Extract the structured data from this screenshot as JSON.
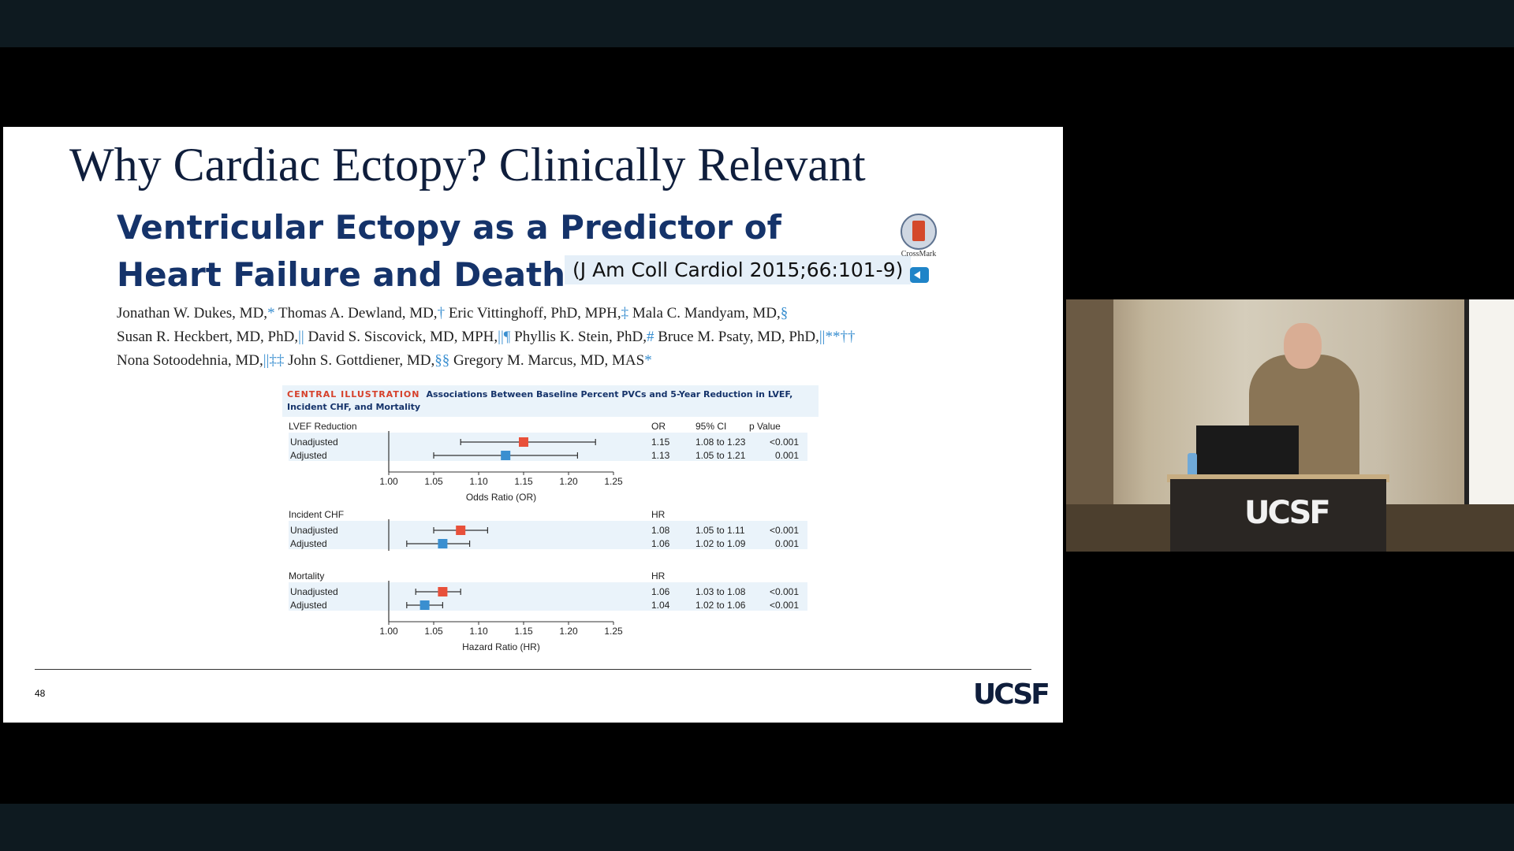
{
  "slide": {
    "title": "Why Cardiac Ectopy? Clinically Relevant",
    "paper_title_line1": "Ventricular Ectopy as a Predictor of",
    "paper_title_line2": "Heart Failure and Death",
    "citation": "(J Am Coll Cardiol 2015;66:101-9)",
    "crossmark_label": "CrossMark",
    "authors": [
      [
        "Jonathan W. Dukes, MD,",
        "*",
        " Thomas A. Dewland, MD,",
        "†",
        " Eric Vittinghoff, PhD, MPH,",
        "‡",
        " Mala C. Mandyam, MD,",
        "§"
      ],
      [
        "Susan R. Heckbert, MD, PhD,",
        "||",
        " David S. Siscovick, MD, MPH,",
        "||¶",
        " Phyllis K. Stein, PhD,",
        "#",
        " Bruce M. Psaty, MD, PhD,",
        "||**††"
      ],
      [
        "Nona Sotoodehnia, MD,",
        "||‡‡",
        " John S. Gottdiener, MD,",
        "§§",
        " Gregory M. Marcus, MD, MAS",
        "*"
      ]
    ],
    "page_number": "48",
    "logo": "UCSF",
    "central_illustration": {
      "label": "CENTRAL ILLUSTRATION",
      "caption": "Associations Between Baseline Percent PVCs and 5-Year Reduction in LVEF, Incident CHF, and Mortality"
    }
  },
  "chart_data": {
    "type": "forest",
    "panels": [
      {
        "name": "LVEF Reduction",
        "stat": "OR",
        "ci_header": "95% CI",
        "p_header": "p Value",
        "rows": [
          {
            "label": "Unadjusted",
            "est": 1.15,
            "lo": 1.08,
            "hi": 1.23,
            "est_text": "1.15",
            "ci_text": "1.08 to 1.23",
            "p": "<0.001",
            "color": "#e8503a"
          },
          {
            "label": "Adjusted",
            "est": 1.13,
            "lo": 1.05,
            "hi": 1.21,
            "est_text": "1.13",
            "ci_text": "1.05 to 1.21",
            "p": "0.001",
            "color": "#3a8fd0"
          }
        ],
        "axis_ticks": [
          "1.00",
          "1.05",
          "1.10",
          "1.15",
          "1.20",
          "1.25"
        ],
        "xlabel": "Odds Ratio (OR)"
      },
      {
        "name": "Incident CHF",
        "stat": "HR",
        "rows": [
          {
            "label": "Unadjusted",
            "est": 1.08,
            "lo": 1.05,
            "hi": 1.11,
            "est_text": "1.08",
            "ci_text": "1.05 to 1.11",
            "p": "<0.001",
            "color": "#e8503a"
          },
          {
            "label": "Adjusted",
            "est": 1.06,
            "lo": 1.02,
            "hi": 1.09,
            "est_text": "1.06",
            "ci_text": "1.02 to 1.09",
            "p": "0.001",
            "color": "#3a8fd0"
          }
        ]
      },
      {
        "name": "Mortality",
        "stat": "HR",
        "rows": [
          {
            "label": "Unadjusted",
            "est": 1.06,
            "lo": 1.03,
            "hi": 1.08,
            "est_text": "1.06",
            "ci_text": "1.03 to 1.08",
            "p": "<0.001",
            "color": "#e8503a"
          },
          {
            "label": "Adjusted",
            "est": 1.04,
            "lo": 1.02,
            "hi": 1.06,
            "est_text": "1.04",
            "ci_text": "1.02 to 1.06",
            "p": "<0.001",
            "color": "#3a8fd0"
          }
        ],
        "axis_ticks": [
          "1.00",
          "1.05",
          "1.10",
          "1.15",
          "1.20",
          "1.25"
        ],
        "xlabel": "Hazard Ratio (HR)"
      }
    ],
    "xlim": [
      1.0,
      1.25
    ]
  },
  "video": {
    "lectern_logo": "UCSF"
  }
}
